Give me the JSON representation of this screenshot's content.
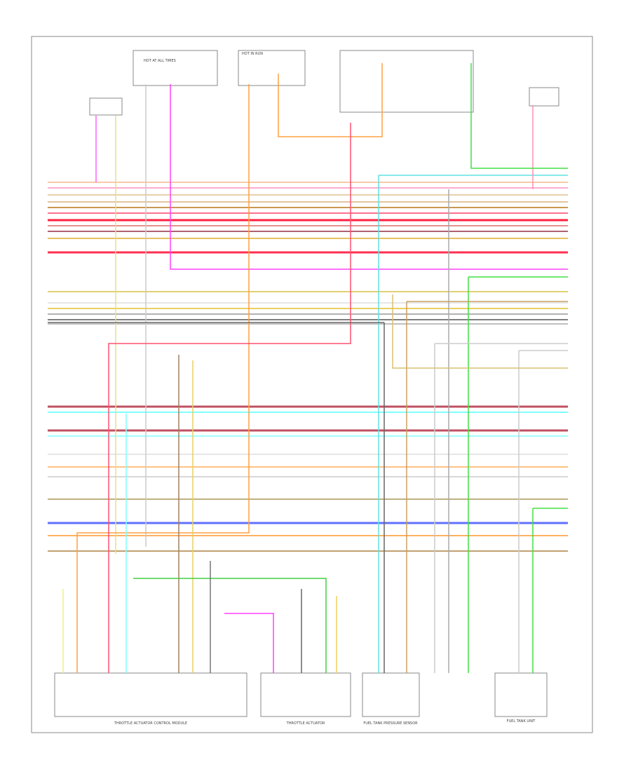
{
  "header": {
    "hot_at_all_times": "HOT AT ALL TIMES",
    "hot_in_run": "HOT IN RUN"
  },
  "components": [
    {
      "label": "THROTTLE ACTUATOR CONTROL MODULE"
    },
    {
      "label": "THROTTLE ACTUATOR"
    },
    {
      "label": "FUEL TANK PRESSURE SENSOR"
    },
    {
      "label": "FUEL TANK UNIT"
    }
  ]
}
